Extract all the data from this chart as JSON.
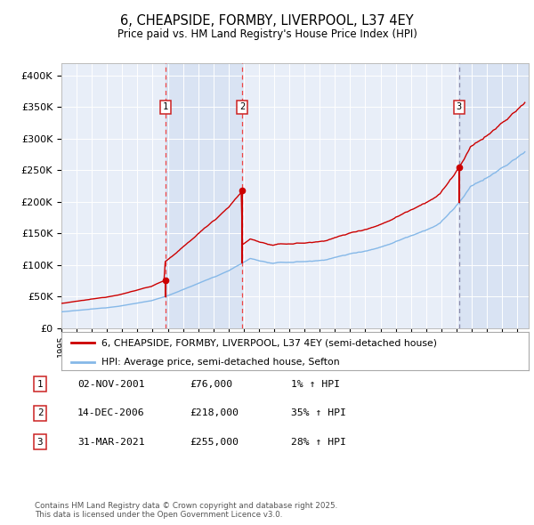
{
  "title": "6, CHEAPSIDE, FORMBY, LIVERPOOL, L37 4EY",
  "subtitle": "Price paid vs. HM Land Registry's House Price Index (HPI)",
  "legend_line1": "6, CHEAPSIDE, FORMBY, LIVERPOOL, L37 4EY (semi-detached house)",
  "legend_line2": "HPI: Average price, semi-detached house, Sefton",
  "sale1_date": "02-NOV-2001",
  "sale1_price": 76000,
  "sale1_pct": "1% ↑ HPI",
  "sale2_date": "14-DEC-2006",
  "sale2_price": 218000,
  "sale2_pct": "35% ↑ HPI",
  "sale3_date": "31-MAR-2021",
  "sale3_price": 255000,
  "sale3_pct": "28% ↑ HPI",
  "footnote": "Contains HM Land Registry data © Crown copyright and database right 2025.\nThis data is licensed under the Open Government Licence v3.0.",
  "hpi_color": "#85b8e8",
  "price_color": "#cc0000",
  "vline_red_color": "#ee4444",
  "vline_gray_color": "#8888aa",
  "shade_color": "#d0ddf0",
  "bg_color": "#e8eef8",
  "ylim": [
    0,
    420000
  ],
  "yticks": [
    0,
    50000,
    100000,
    150000,
    200000,
    250000,
    300000,
    350000,
    400000
  ],
  "start_year": 1995.0,
  "end_year": 2025.75
}
